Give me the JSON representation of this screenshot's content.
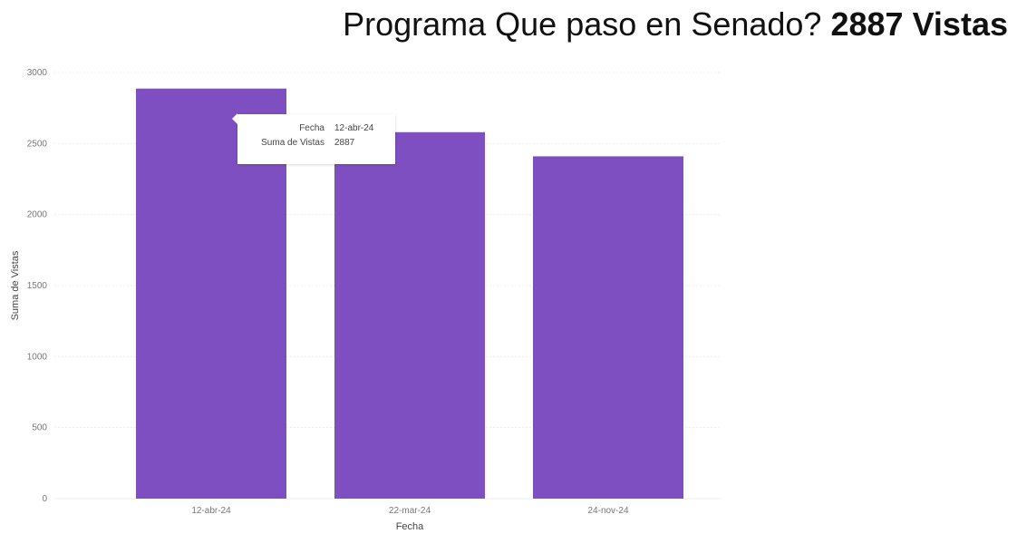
{
  "title": {
    "text": "Programa Que paso en Senado?",
    "highlight": "2887 Vistas"
  },
  "chart_data": {
    "type": "bar",
    "categories": [
      "12-abr-24",
      "22-mar-24",
      "24-nov-24"
    ],
    "values": [
      2887,
      2580,
      2410
    ],
    "xlabel": "Fecha",
    "ylabel": "Suma de Vistas",
    "ylim": [
      0,
      3000
    ],
    "yticks": [
      0,
      500,
      1000,
      1500,
      2000,
      2500,
      3000
    ],
    "grid": true,
    "bar_color": "#7e4fc1"
  },
  "tooltip": {
    "rows": [
      {
        "key": "Fecha",
        "value": "12-abr-24"
      },
      {
        "key": "Suma de Vistas",
        "value": "2887"
      }
    ]
  }
}
